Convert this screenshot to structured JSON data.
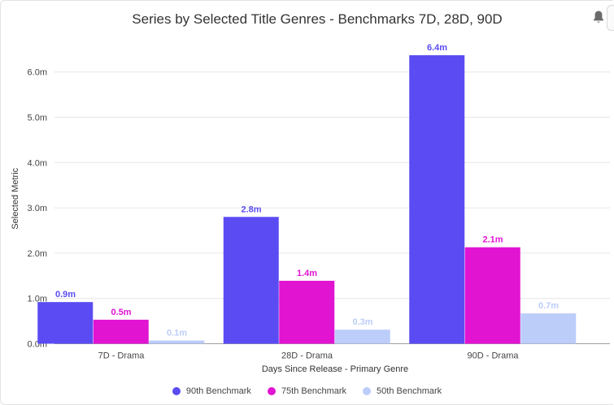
{
  "chart_data": {
    "type": "bar",
    "title": "Series by Selected Title Genres - Benchmarks 7D, 28D, 90D",
    "xlabel": "Days Since Release - Primary Genre",
    "ylabel": "Selected Metric",
    "categories": [
      "7D - Drama",
      "28D - Drama",
      "90D - Drama"
    ],
    "ylim": [
      0,
      6.6
    ],
    "yticks": [
      0,
      1,
      2,
      3,
      4,
      5,
      6
    ],
    "ytick_labels": [
      "0.0m",
      "1.0m",
      "2.0m",
      "3.0m",
      "4.0m",
      "5.0m",
      "6.0m"
    ],
    "grid": true,
    "legend_position": "bottom-center",
    "series": [
      {
        "name": "90th Benchmark",
        "color": "#5a4cf2",
        "values": [
          0.92,
          2.8,
          6.37
        ],
        "labels": [
          "0.9m",
          "2.8m",
          "6.4m"
        ]
      },
      {
        "name": "75th Benchmark",
        "color": "#e114d2",
        "values": [
          0.53,
          1.39,
          2.13
        ],
        "labels": [
          "0.5m",
          "1.4m",
          "2.1m"
        ]
      },
      {
        "name": "50th Benchmark",
        "color": "#bccdfa",
        "values": [
          0.07,
          0.31,
          0.67
        ],
        "labels": [
          "0.1m",
          "0.3m",
          "0.7m"
        ]
      }
    ]
  },
  "icons": {
    "notification": "bell-icon"
  }
}
